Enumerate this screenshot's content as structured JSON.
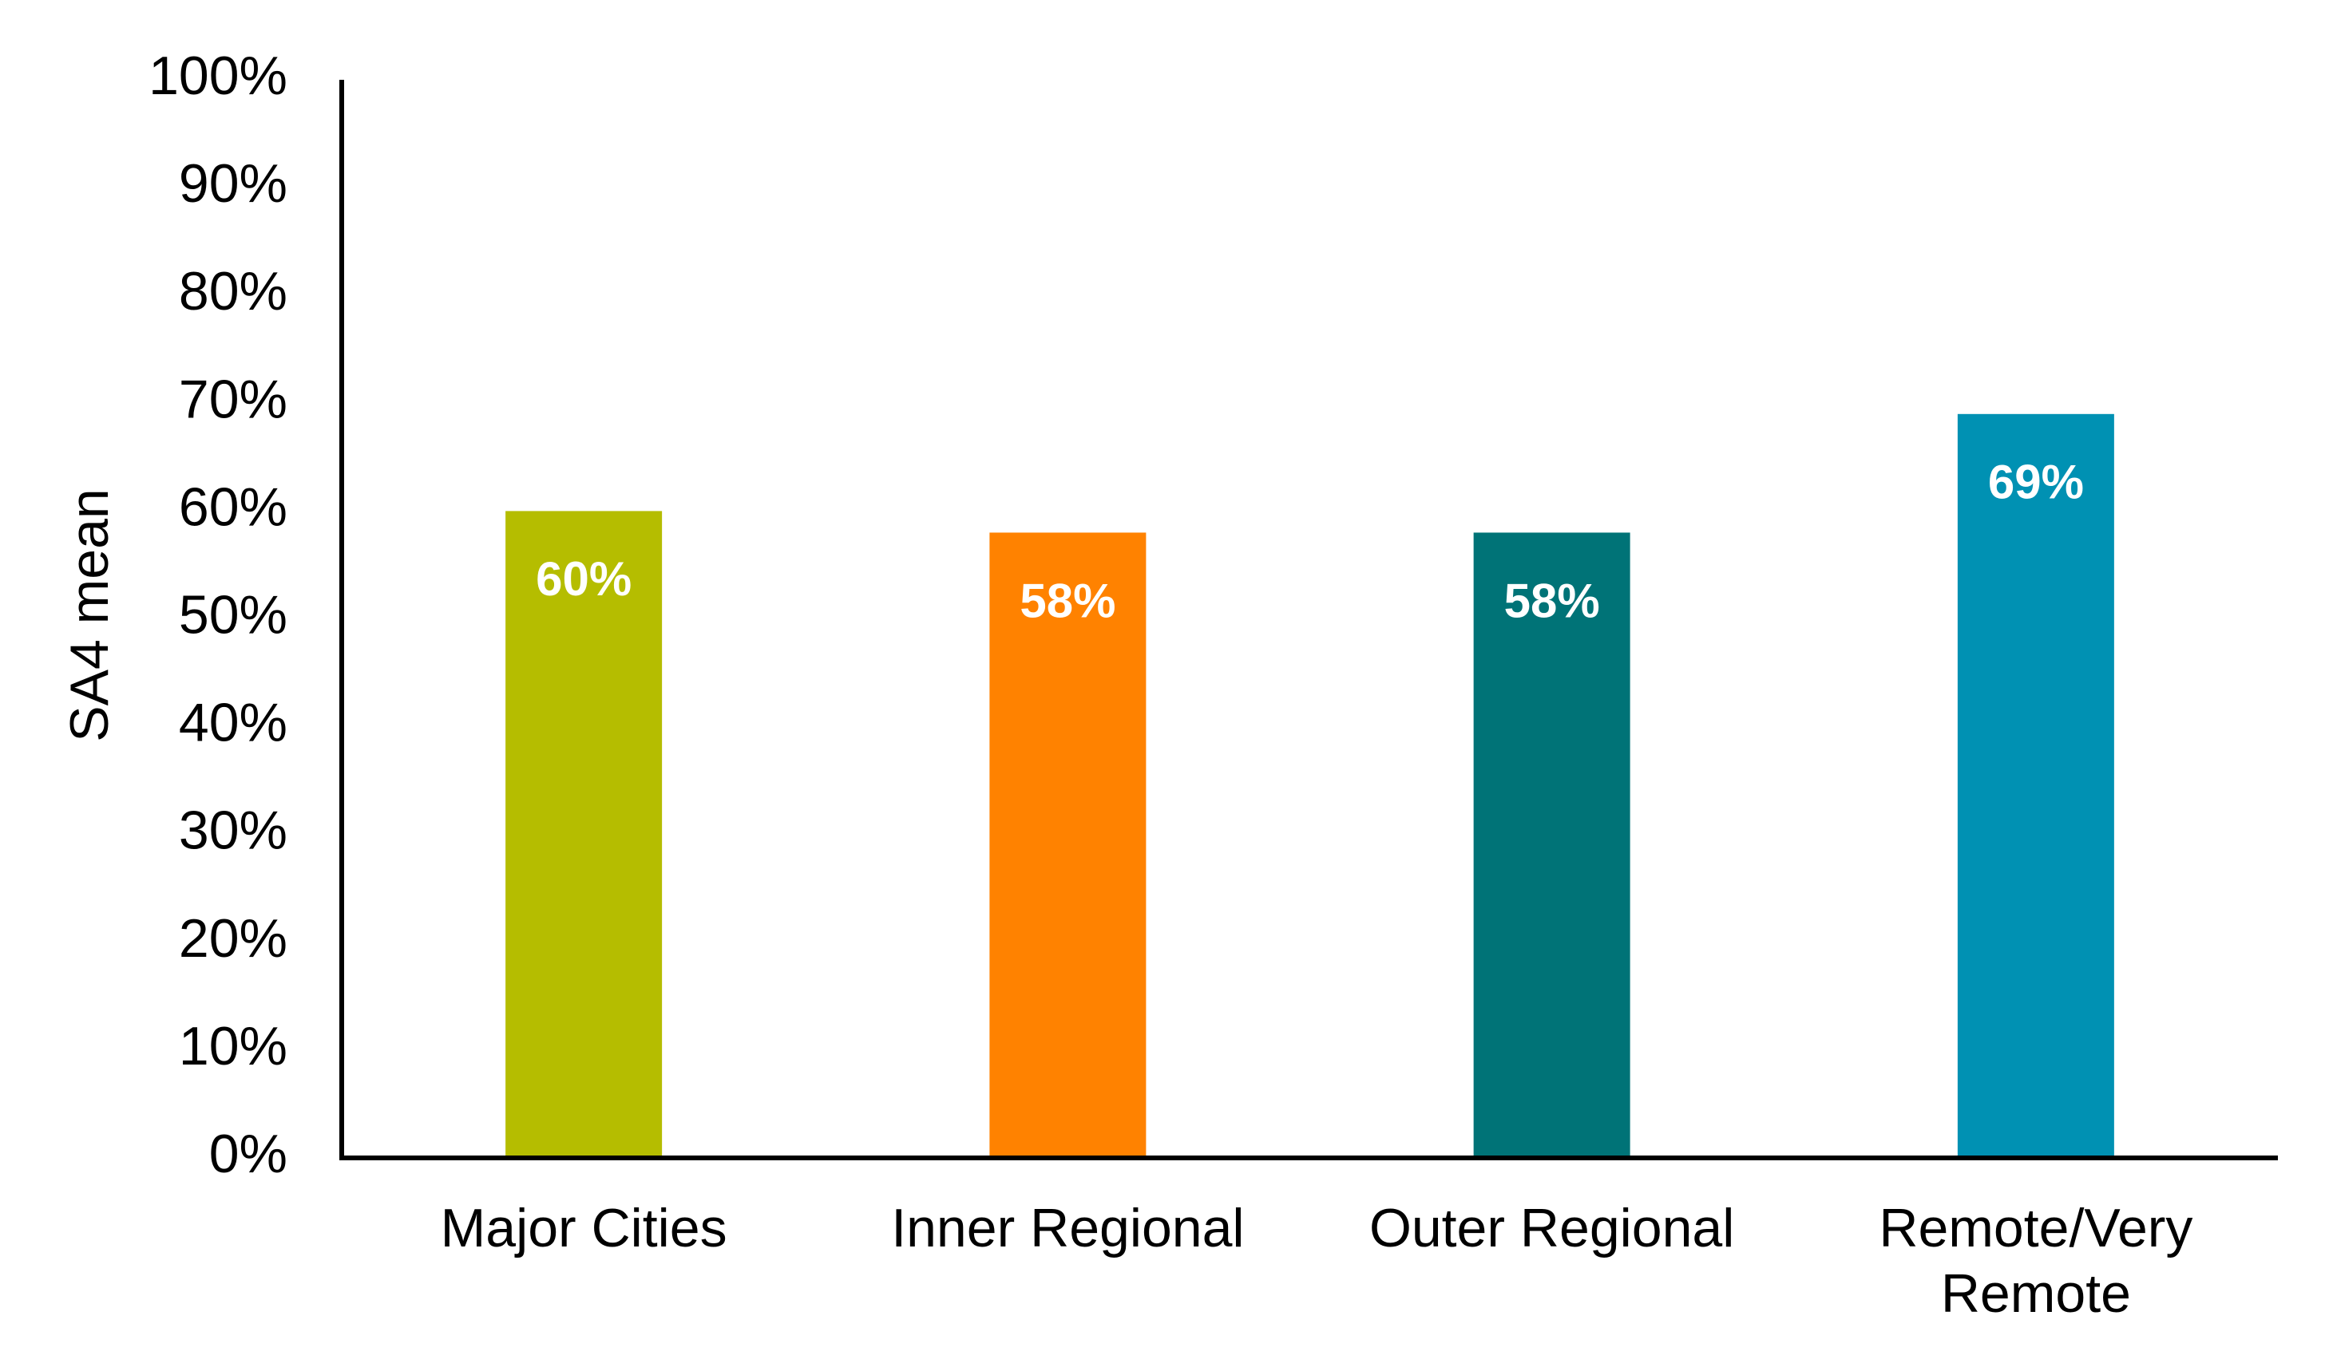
{
  "chart_data": {
    "type": "bar",
    "y_label": "SA4 mean",
    "categories": [
      "Major Cities",
      "Inner Regional",
      "Outer Regional",
      "Remote/Very Remote"
    ],
    "values": [
      60,
      58,
      58,
      69
    ],
    "value_labels": [
      "60%",
      "58%",
      "58%",
      "69%"
    ],
    "colors": [
      "#b5bd00",
      "#ff8200",
      "#007377",
      "#0091b3"
    ],
    "ylim": [
      0,
      100
    ],
    "yticks": [
      {
        "value": 0,
        "label": "0%"
      },
      {
        "value": 10,
        "label": "10%"
      },
      {
        "value": 20,
        "label": "20%"
      },
      {
        "value": 30,
        "label": "30%"
      },
      {
        "value": 40,
        "label": "40%"
      },
      {
        "value": 50,
        "label": "50%"
      },
      {
        "value": 60,
        "label": "60%"
      },
      {
        "value": 70,
        "label": "70%"
      },
      {
        "value": 80,
        "label": "80%"
      },
      {
        "value": 90,
        "label": "90%"
      },
      {
        "value": 100,
        "label": "100%"
      }
    ],
    "grid": false
  }
}
